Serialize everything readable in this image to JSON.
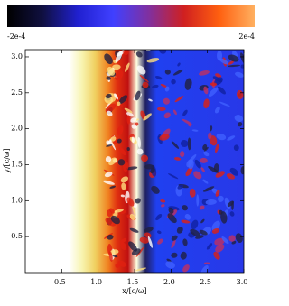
{
  "chart_data": {
    "type": "image",
    "xlabel": "x/[c/ω]",
    "ylabel": "y/[c/ω]",
    "xlim": [
      0,
      3
    ],
    "xticks": [
      0.5,
      {
        "value": 1,
        "label": "1.0"
      },
      1.5,
      {
        "value": 2,
        "label": "2.0"
      },
      2.5,
      {
        "value": 3,
        "label": "3.0"
      }
    ],
    "ylim": [
      0,
      3.1
    ],
    "yticks": [
      0.5,
      {
        "value": 1,
        "label": "1.0"
      },
      1.5,
      {
        "value": 2,
        "label": "2.0"
      },
      2.5,
      {
        "value": 3,
        "label": "3.0"
      }
    ],
    "clim": [
      -0.0002,
      0.0002
    ],
    "cticks": [
      {
        "value": -0.0002,
        "label": "-2e-4"
      },
      {
        "value": 0.0002,
        "label": "2e-4"
      }
    ],
    "colormap": [
      "#000000",
      "#101040",
      "#2020d0",
      "#4040ff",
      "#8030a0",
      "#d02020",
      "#ff6010",
      "#ffb060"
    ]
  }
}
